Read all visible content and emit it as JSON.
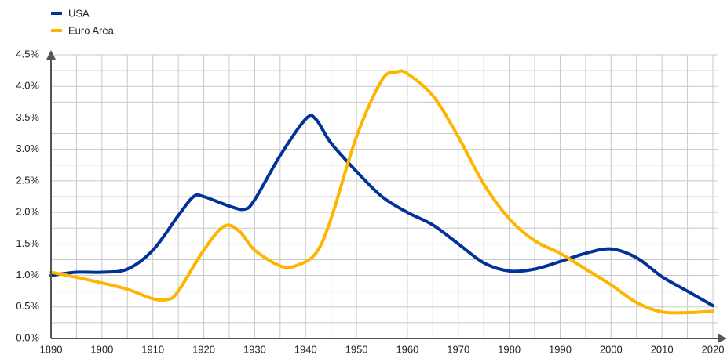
{
  "chart_data": {
    "type": "line",
    "series": [
      {
        "name": "USA",
        "color": "#003299",
        "x": [
          1890,
          1895,
          1900,
          1905,
          1910,
          1915,
          1918,
          1920,
          1925,
          1928,
          1930,
          1935,
          1940,
          1942,
          1945,
          1950,
          1955,
          1960,
          1965,
          1970,
          1975,
          1980,
          1985,
          1990,
          1995,
          2000,
          2005,
          2010,
          2015,
          2020
        ],
        "values": [
          1.0,
          1.05,
          1.05,
          1.1,
          1.4,
          1.95,
          2.25,
          2.25,
          2.1,
          2.05,
          2.2,
          2.9,
          3.48,
          3.48,
          3.1,
          2.65,
          2.25,
          2.0,
          1.8,
          1.5,
          1.2,
          1.07,
          1.1,
          1.22,
          1.35,
          1.42,
          1.28,
          0.98,
          0.75,
          0.52
        ]
      },
      {
        "name": "Euro Area",
        "color": "#FFB400",
        "x": [
          1890,
          1895,
          1900,
          1905,
          1910,
          1913,
          1915,
          1920,
          1924,
          1927,
          1930,
          1935,
          1938,
          1942,
          1945,
          1950,
          1955,
          1958,
          1960,
          1965,
          1970,
          1975,
          1980,
          1985,
          1990,
          1995,
          2000,
          2005,
          2010,
          2015,
          2020
        ],
        "values": [
          1.05,
          0.97,
          0.88,
          0.78,
          0.63,
          0.62,
          0.75,
          1.4,
          1.78,
          1.7,
          1.4,
          1.15,
          1.15,
          1.35,
          1.9,
          3.2,
          4.1,
          4.23,
          4.2,
          3.85,
          3.2,
          2.45,
          1.9,
          1.55,
          1.35,
          1.1,
          0.85,
          0.57,
          0.42,
          0.41,
          0.43
        ]
      }
    ],
    "xlim": [
      1890,
      2020
    ],
    "xticks": [
      1890,
      1900,
      1910,
      1920,
      1930,
      1940,
      1950,
      1960,
      1970,
      1980,
      1990,
      2000,
      2010,
      2020
    ],
    "ylim": [
      0,
      4.5
    ],
    "yticks": [
      {
        "value": 0,
        "label": "0.0%"
      },
      {
        "value": 0.5,
        "label": "0.5%"
      },
      {
        "value": 1,
        "label": "1.0%"
      },
      {
        "value": 1.5,
        "label": "1.5%"
      },
      {
        "value": 2,
        "label": "2.0%"
      },
      {
        "value": 2.5,
        "label": "2.5%"
      },
      {
        "value": 3,
        "label": "3.0%"
      },
      {
        "value": 3.5,
        "label": "3.5%"
      },
      {
        "value": 4,
        "label": "4.0%"
      },
      {
        "value": 4.5,
        "label": "4.5%"
      }
    ],
    "grid": true,
    "legend": "top-left"
  }
}
